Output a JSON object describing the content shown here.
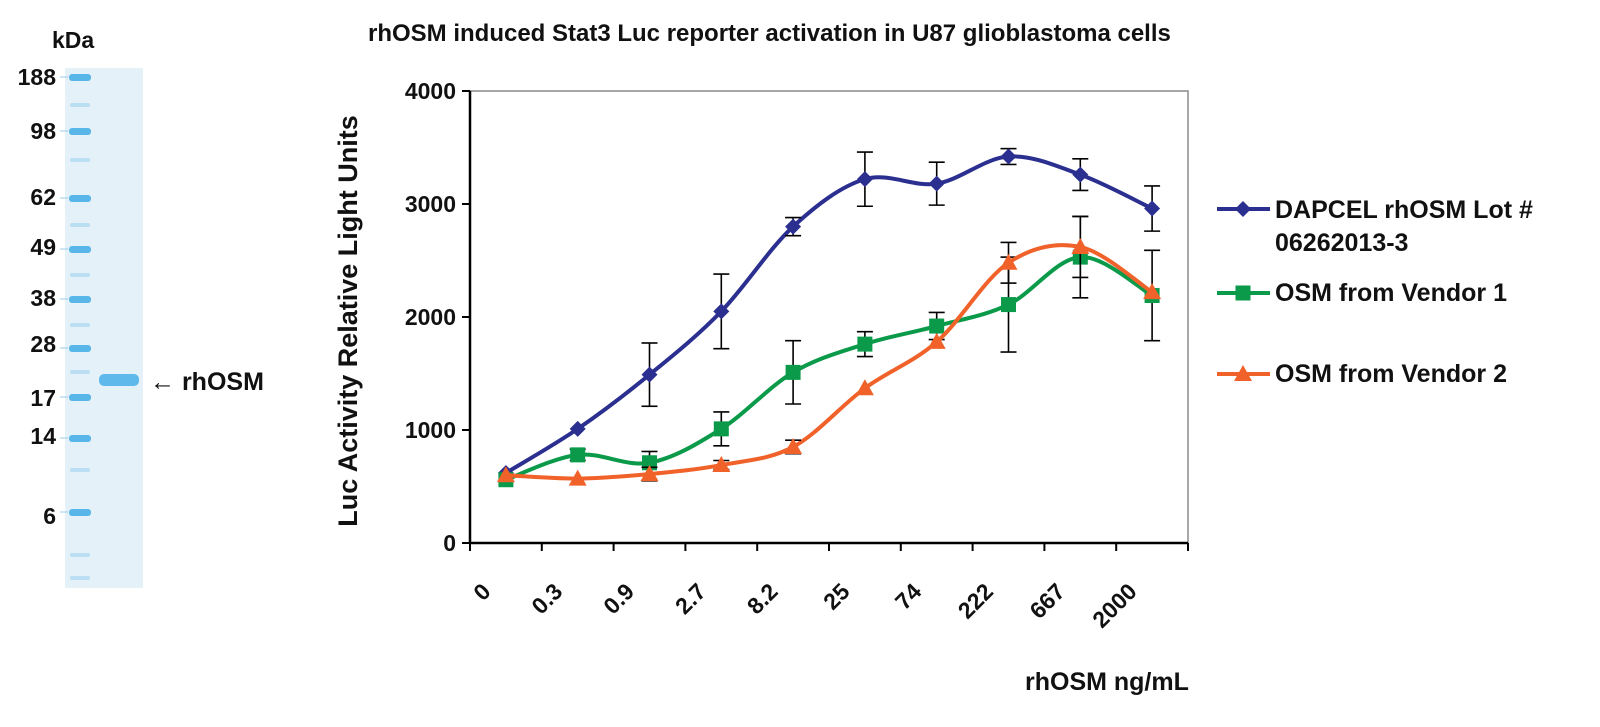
{
  "gel": {
    "unit_label": "kDa",
    "markers": [
      "188",
      "98",
      "62",
      "49",
      "38",
      "28",
      "17",
      "14",
      "6"
    ],
    "band_label": "← rhOSM",
    "colors": {
      "lane": "#e4f1f9",
      "marker_band": "#58b7e8",
      "sample_band": "#5fb9ea"
    }
  },
  "chart_data": {
    "type": "line",
    "title": "rhOSM induced Stat3 Luc reporter activation in U87 glioblastoma cells",
    "xlabel": "rhOSM ng/mL",
    "ylabel": "Luc Activity Relative Light Units",
    "categories": [
      "0",
      "0.3",
      "0.9",
      "2.7",
      "8.2",
      "25",
      "74",
      "222",
      "667",
      "2000"
    ],
    "ylim": [
      0,
      4000
    ],
    "yticks": [
      "0",
      "1000",
      "2000",
      "3000",
      "4000"
    ],
    "grid": false,
    "legend_position": "right",
    "series": [
      {
        "name": "DAPCEL rhOSM Lot # 06262013-3",
        "name_lines": [
          "DAPCEL rhOSM Lot #",
          "06262013-3"
        ],
        "color": "#2b2f8f",
        "marker": "diamond",
        "values": [
          620,
          1010,
          1490,
          2050,
          2800,
          3220,
          3180,
          3420,
          3260,
          2960
        ],
        "errors": [
          0,
          0,
          280,
          330,
          80,
          240,
          190,
          70,
          140,
          200
        ]
      },
      {
        "name": "OSM from Vendor 1",
        "name_lines": [
          "OSM from Vendor 1"
        ],
        "color": "#0a9a4a",
        "marker": "square",
        "values": [
          560,
          780,
          710,
          1010,
          1510,
          1760,
          1920,
          2110,
          2530,
          2190
        ],
        "errors": [
          0,
          50,
          100,
          150,
          280,
          110,
          120,
          420,
          360,
          400
        ]
      },
      {
        "name": "OSM from Vendor 2",
        "name_lines": [
          "OSM from Vendor 2"
        ],
        "color": "#f0622a",
        "marker": "triangle",
        "values": [
          600,
          570,
          610,
          690,
          850,
          1370,
          1780,
          2480,
          2620,
          2220
        ],
        "errors": [
          0,
          0,
          60,
          40,
          60,
          0,
          0,
          180,
          270,
          0
        ]
      }
    ]
  }
}
